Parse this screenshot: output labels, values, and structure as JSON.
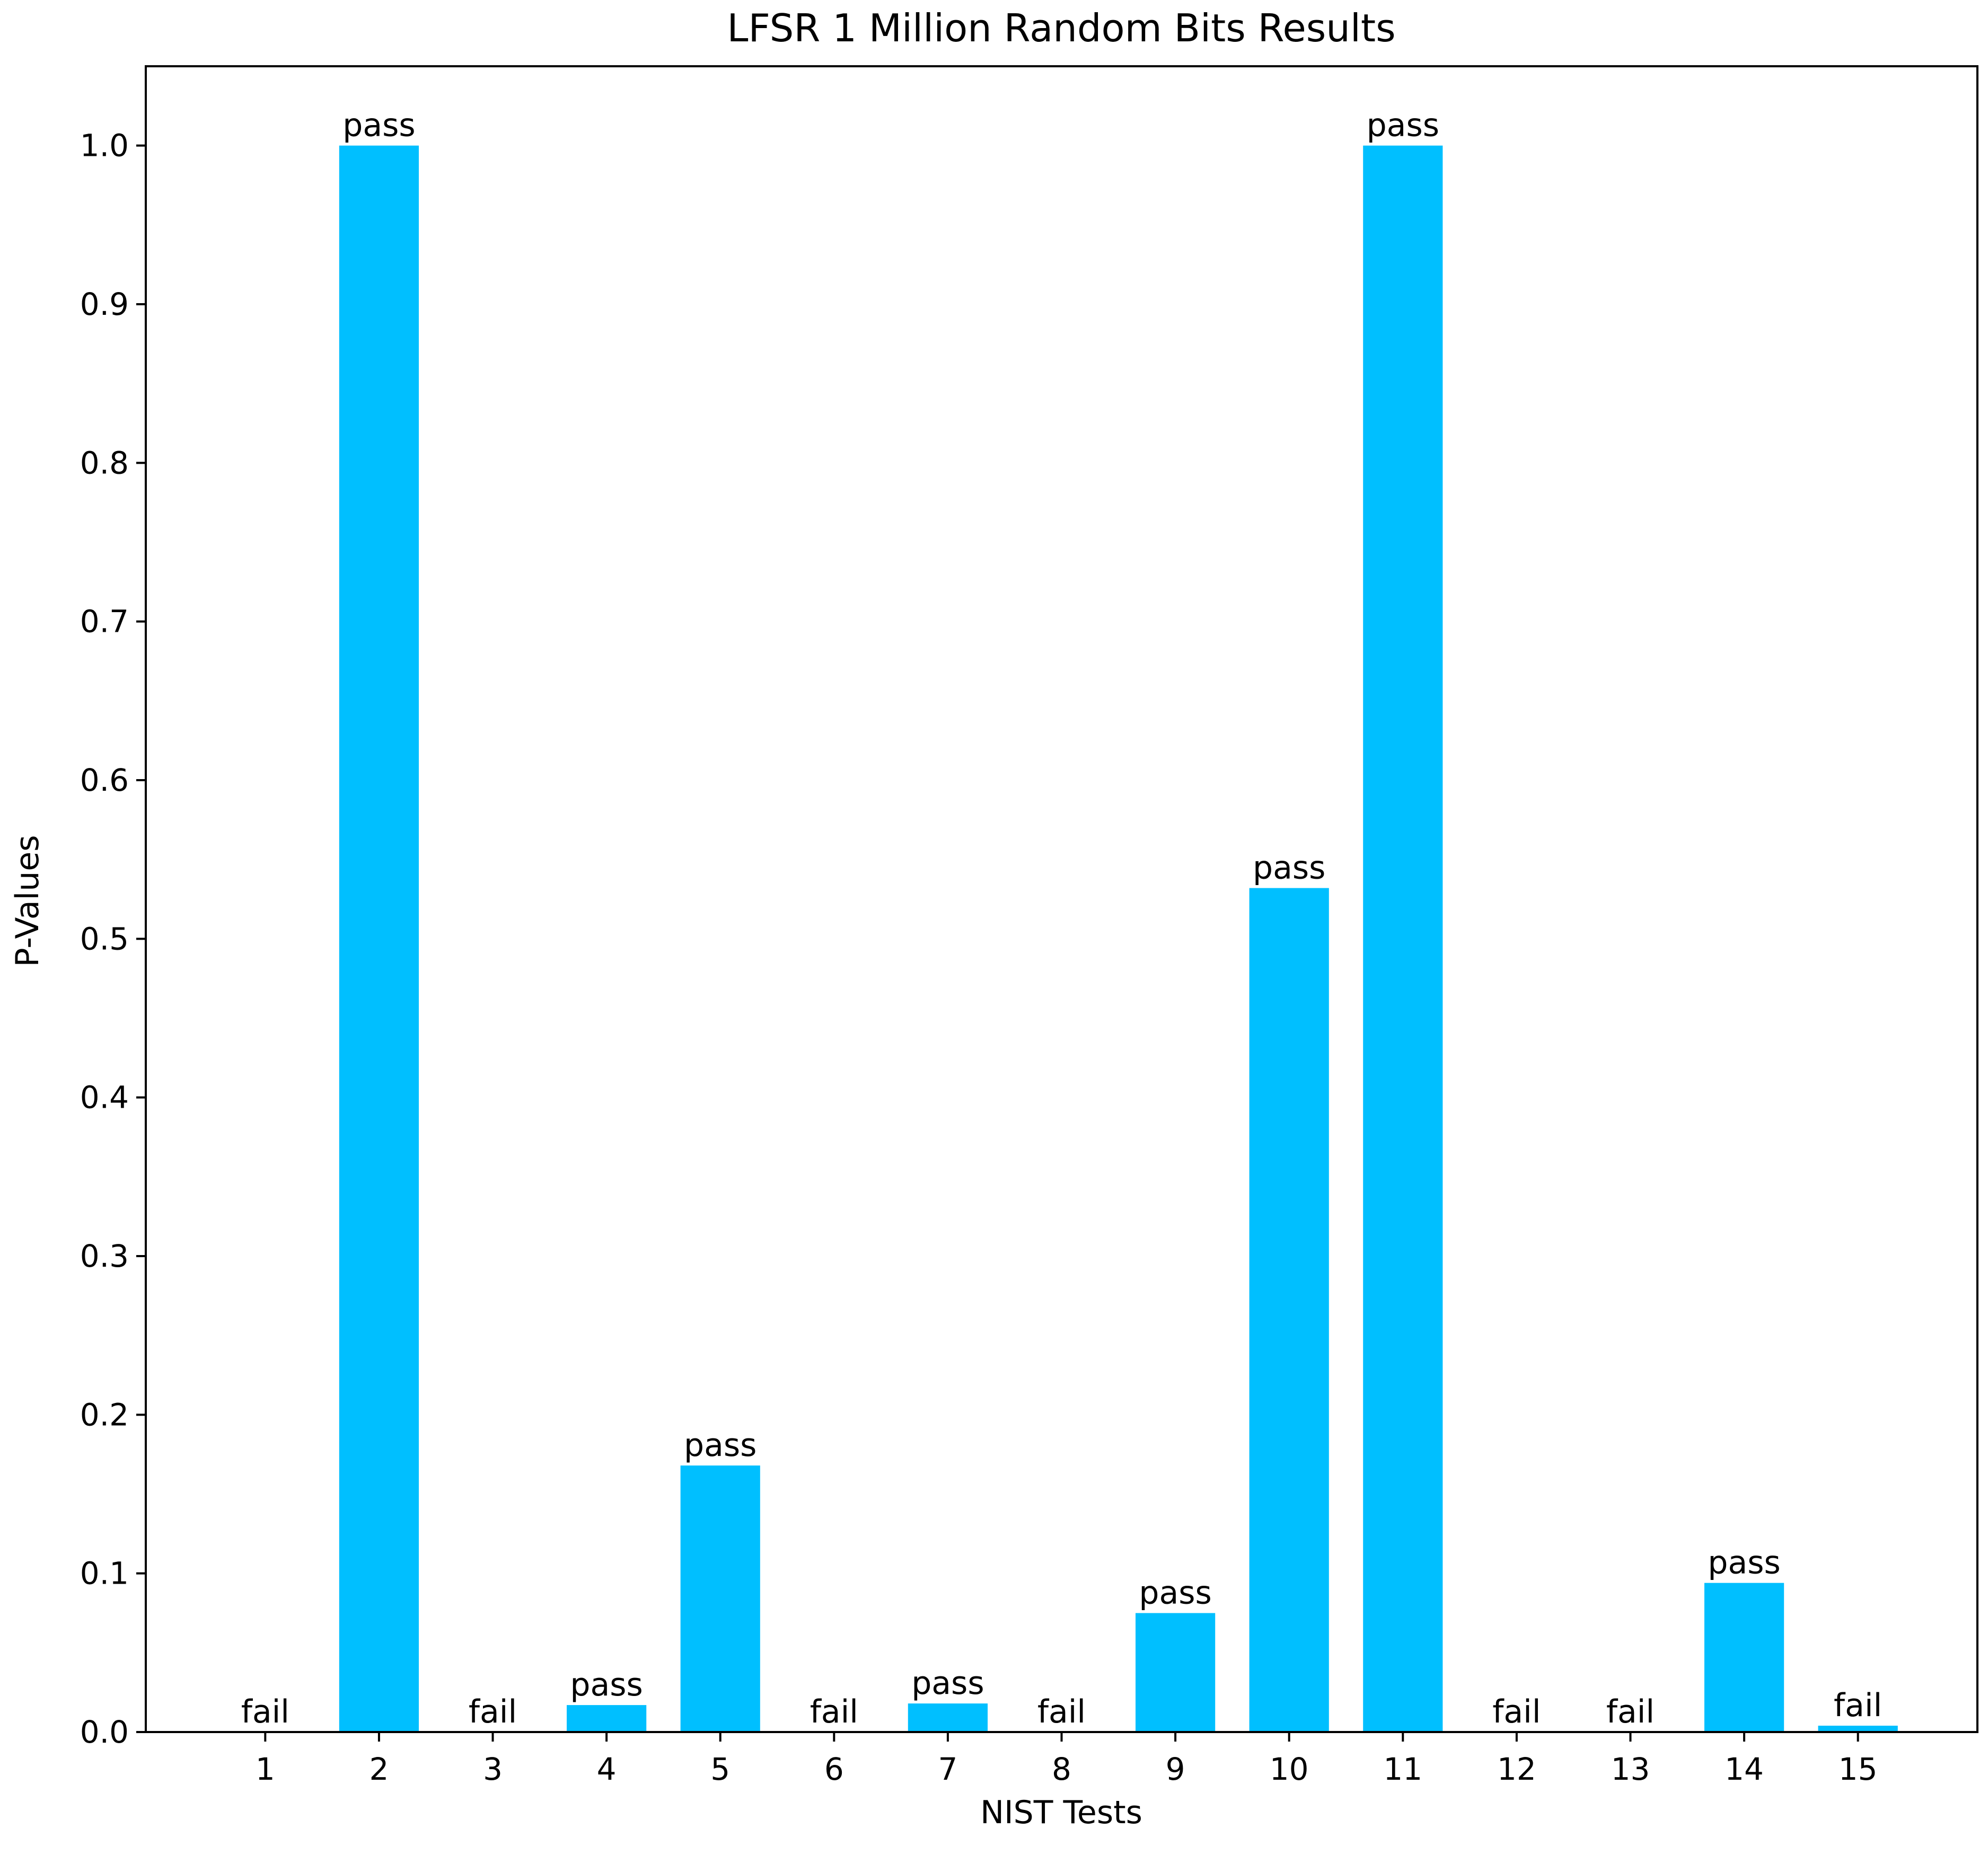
{
  "chart_data": {
    "type": "bar",
    "title": "LFSR 1 Million Random Bits Results",
    "xlabel": "NIST Tests",
    "ylabel": "P-Values",
    "categories": [
      "1",
      "2",
      "3",
      "4",
      "5",
      "6",
      "7",
      "8",
      "9",
      "10",
      "11",
      "12",
      "13",
      "14",
      "15"
    ],
    "values": [
      0.0,
      1.0,
      0.0,
      0.017,
      0.168,
      0.0,
      0.018,
      0.0,
      0.075,
      0.532,
      1.0,
      0.0,
      0.0,
      0.094,
      0.004
    ],
    "bar_labels": [
      "fail",
      "pass",
      "fail",
      "pass",
      "pass",
      "fail",
      "pass",
      "fail",
      "pass",
      "pass",
      "pass",
      "fail",
      "fail",
      "pass",
      "fail"
    ],
    "ylim": [
      0,
      1.05
    ],
    "yticks": [
      "0.0",
      "0.1",
      "0.2",
      "0.3",
      "0.4",
      "0.5",
      "0.6",
      "0.7",
      "0.8",
      "0.9",
      "1.0"
    ],
    "grid": false,
    "bar_color": "#00bfff"
  }
}
